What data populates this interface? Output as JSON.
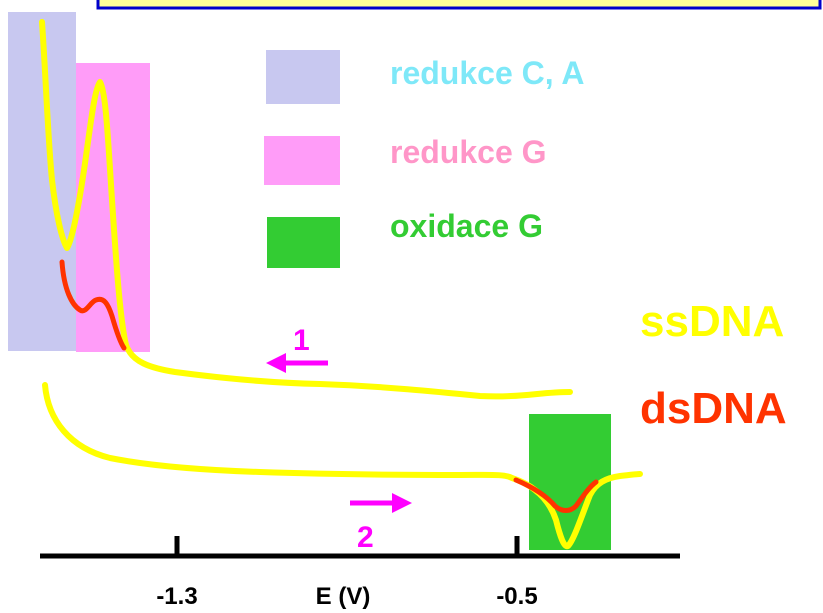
{
  "legend": [
    {
      "label": "redukce C, A",
      "swatch_color": "#c8c8f0",
      "text_color": "#7ee8f8"
    },
    {
      "label": "redukce G",
      "swatch_color": "#ff9cf8",
      "text_color": "#ff96c8"
    },
    {
      "label": "oxidace G",
      "swatch_color": "#33cc33",
      "text_color": "#33cc33"
    }
  ],
  "curves": [
    {
      "label": "ssDNA",
      "color": "#ffff00"
    },
    {
      "label": "dsDNA",
      "color": "#ff3300"
    }
  ],
  "scan_arrows": [
    {
      "label": "1",
      "direction": "left",
      "color": "#ff00ff"
    },
    {
      "label": "2",
      "direction": "right",
      "color": "#ff00ff"
    }
  ],
  "axis": {
    "xlabel": "E (V)",
    "ticks": [
      "-1.3",
      "-0.5"
    ]
  },
  "colors": {
    "title_box_border": "#0000cc",
    "title_box_fill": "#ffff99",
    "axis": "#000000"
  }
}
